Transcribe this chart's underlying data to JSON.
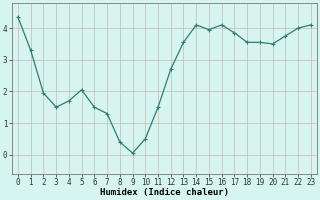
{
  "x": [
    0,
    1,
    2,
    3,
    4,
    5,
    6,
    7,
    8,
    9,
    10,
    11,
    12,
    13,
    14,
    15,
    16,
    17,
    18,
    19,
    20,
    21,
    22,
    23
  ],
  "y": [
    4.35,
    3.3,
    1.95,
    1.5,
    1.7,
    2.05,
    1.5,
    1.3,
    0.4,
    0.05,
    0.5,
    1.5,
    2.7,
    3.55,
    4.1,
    3.95,
    4.1,
    3.85,
    3.55,
    3.55,
    3.5,
    3.75,
    4.0,
    4.1
  ],
  "line_color": "#2e7d6e",
  "marker": "+",
  "marker_size": 3,
  "marker_lw": 0.8,
  "bg_color": "#d6f5f0",
  "grid_color": "#c9b8b8",
  "xlabel": "Humidex (Indice chaleur)",
  "xlabel_fontsize": 6.5,
  "tick_fontsize": 5.5,
  "ylim": [
    -0.6,
    4.8
  ],
  "xlim": [
    -0.5,
    23.5
  ],
  "yticks": [
    0,
    1,
    2,
    3,
    4
  ],
  "xticks": [
    0,
    1,
    2,
    3,
    4,
    5,
    6,
    7,
    8,
    9,
    10,
    11,
    12,
    13,
    14,
    15,
    16,
    17,
    18,
    19,
    20,
    21,
    22,
    23
  ],
  "line_width": 0.9
}
